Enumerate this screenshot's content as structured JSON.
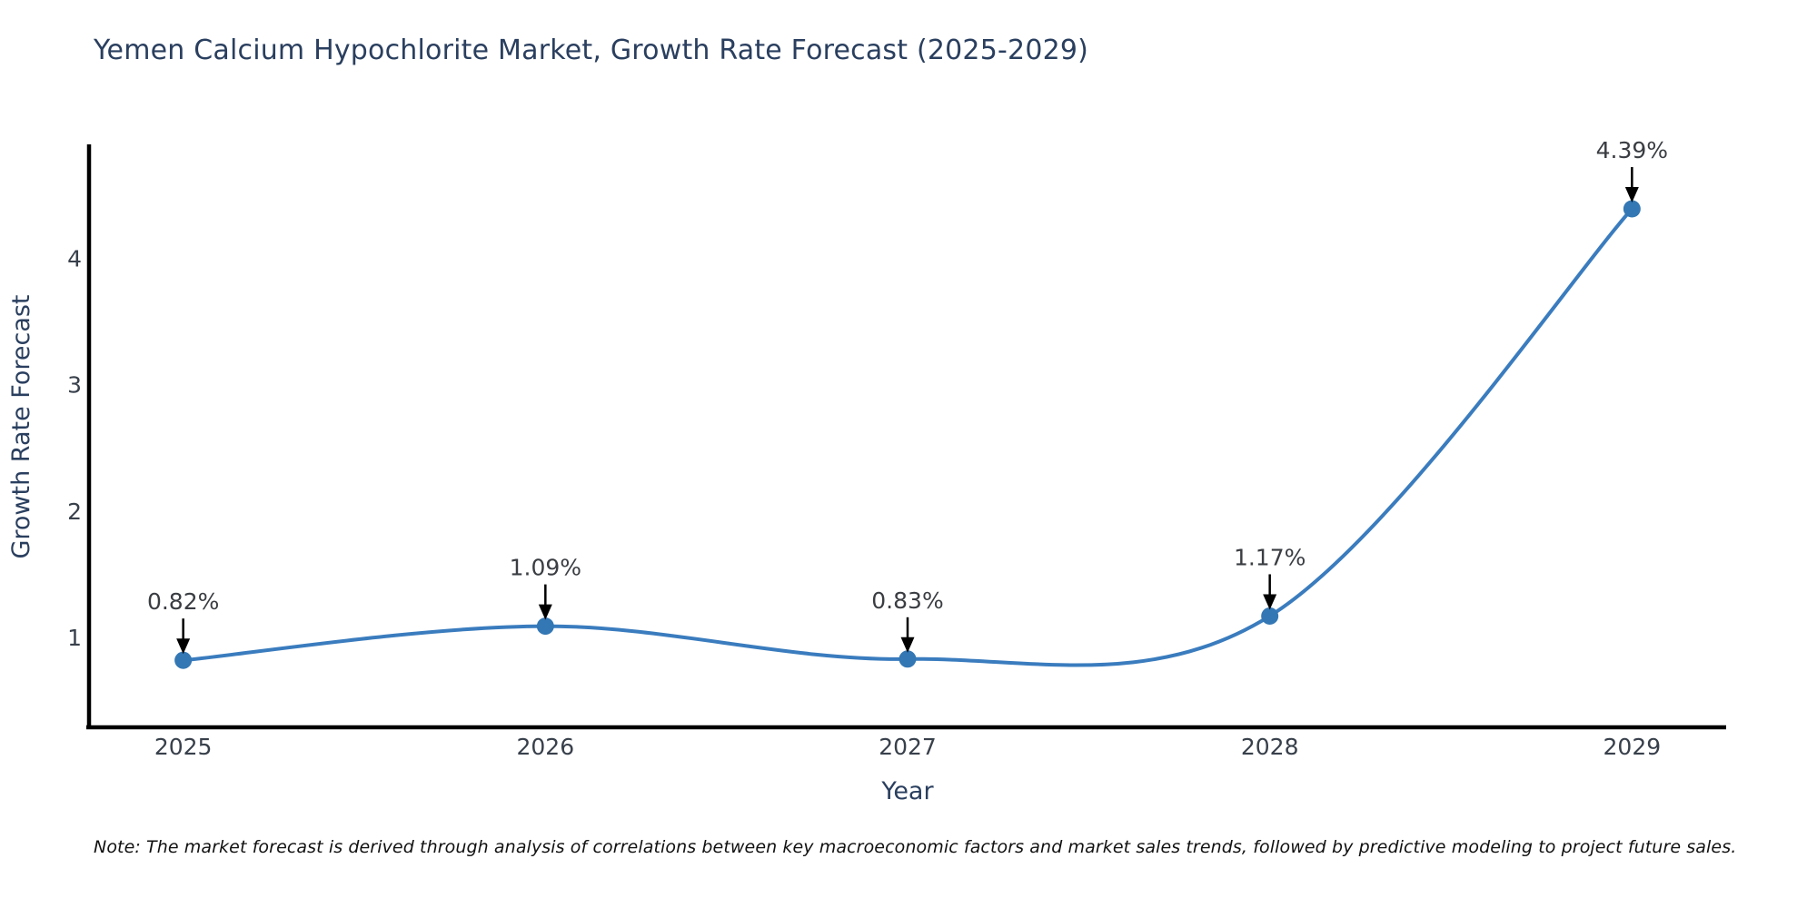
{
  "title": "Yemen Calcium Hypochlorite Market, Growth Rate Forecast (2025-2029)",
  "note": "Note: The market forecast is derived through analysis of correlations between key macroeconomic factors and market sales trends, followed by predictive modeling to project future sales.",
  "chart_data": {
    "type": "line",
    "line_shape": "spline",
    "x": [
      2025,
      2026,
      2027,
      2028,
      2029
    ],
    "values": [
      0.82,
      1.09,
      0.83,
      1.17,
      4.39
    ],
    "point_labels": [
      "0.82%",
      "1.09%",
      "0.83%",
      "1.17%",
      "4.39%"
    ],
    "title": "Yemen Calcium Hypochlorite Market, Growth Rate Forecast (2025-2029)",
    "xlabel": "Year",
    "ylabel": "Growth Rate Forecast",
    "yticks": [
      1,
      2,
      3,
      4
    ],
    "xtick_labels": [
      "2025",
      "2026",
      "2027",
      "2028",
      "2029"
    ],
    "xlim": [
      2024.74,
      2029.26
    ],
    "ylim": [
      0.29,
      4.9
    ],
    "grid": false,
    "legend": "none",
    "markers": true,
    "annotations_have_arrows": true,
    "colors": {
      "line": "#3a7cbe",
      "marker": "#3377b4",
      "axis": "#000000",
      "title": "#2a3f5f",
      "axis_label": "#2a3f5f",
      "tick": "#38404b",
      "annotation": "#3a3d42",
      "arrow": "#000000",
      "background": "#ffffff"
    }
  }
}
